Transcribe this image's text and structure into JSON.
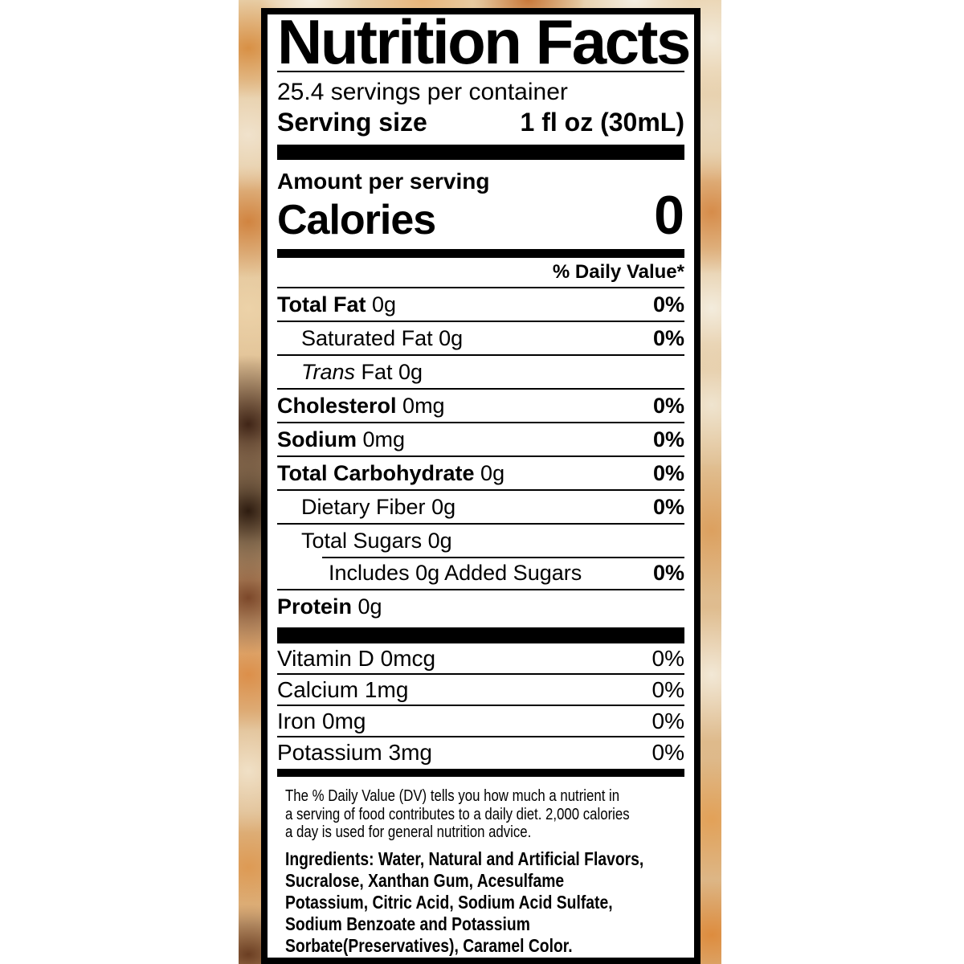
{
  "label": {
    "title": "Nutrition Facts",
    "servings_per_container": "25.4 servings per container",
    "serving_size": {
      "label": "Serving size",
      "value": "1 fl oz (30mL)"
    },
    "amount_per_serving": "Amount per serving",
    "calories": {
      "label": "Calories",
      "value": "0"
    },
    "daily_value_header": "% Daily Value*",
    "nutrients": [
      {
        "name": "Total Fat",
        "amount": "0g",
        "dv": "0%"
      },
      {
        "name": "Saturated Fat",
        "amount": "0g",
        "dv": "0%"
      },
      {
        "name": "Trans",
        "amount": "Fat 0g",
        "dv": ""
      },
      {
        "name": "Cholesterol",
        "amount": "0mg",
        "dv": "0%"
      },
      {
        "name": "Sodium",
        "amount": "0mg",
        "dv": "0%"
      },
      {
        "name": "Total Carbohydrate",
        "amount": "0g",
        "dv": "0%"
      },
      {
        "name": "Dietary Fiber",
        "amount": "0g",
        "dv": "0%"
      },
      {
        "name": "Total Sugars",
        "amount": "0g",
        "dv": ""
      },
      {
        "name": "Includes 0g Added Sugars",
        "amount": "",
        "dv": "0%"
      },
      {
        "name": "Protein",
        "amount": "0g",
        "dv": ""
      }
    ],
    "vitamins": [
      {
        "name": "Vitamin D",
        "amount": "0mcg",
        "dv": "0%"
      },
      {
        "name": "Calcium",
        "amount": "1mg",
        "dv": "0%"
      },
      {
        "name": "Iron",
        "amount": "0mg",
        "dv": "0%"
      },
      {
        "name": "Potassium",
        "amount": "3mg",
        "dv": "0%"
      }
    ],
    "footnote_lines": [
      "The % Daily Value (DV) tells you how much a nutrient in",
      "a serving of food contributes to a daily diet. 2,000 calories",
      "a day is used for general nutrition advice."
    ],
    "ingredients_lines": [
      "Ingredients: Water, Natural and Artificial Flavors,",
      "Sucralose, Xanthan Gum, Acesulfame",
      "Potassium, Citric Acid, Sodium Acid Sulfate,",
      "Sodium Benzoate and Potassium",
      "Sorbate(Preservatives), Caramel Color."
    ]
  },
  "colors": {
    "text": "#000000",
    "label_background": "#ffffff",
    "label_border": "#000000",
    "photo_orange": "#d68c4a",
    "photo_cream": "#f2e8d6",
    "photo_dark_brown": "#3a2315"
  }
}
